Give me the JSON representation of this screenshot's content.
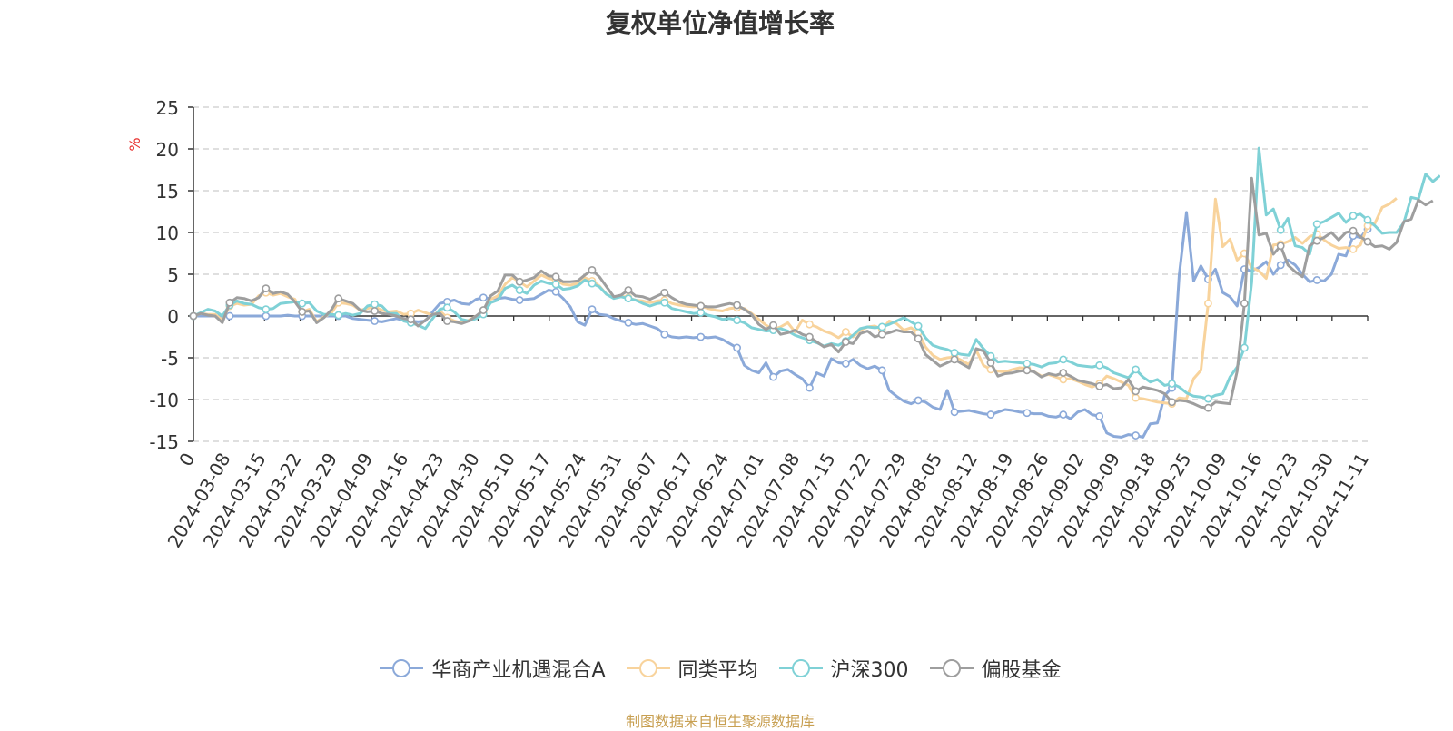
{
  "source": "制图数据来自恒生聚源数据库",
  "chart_data": {
    "type": "line",
    "title": "复权单位净值增长率",
    "ylabel": "%",
    "ylim": [
      -15,
      25
    ],
    "yticks": [
      25,
      20,
      15,
      10,
      5,
      0,
      -5,
      -10,
      -15
    ],
    "grid": true,
    "legend_position": "bottom",
    "x_tick_labels": [
      "0",
      "2024-03-08",
      "2024-03-15",
      "2024-03-22",
      "2024-03-29",
      "2024-04-09",
      "2024-04-16",
      "2024-04-23",
      "2024-04-30",
      "2024-05-10",
      "2024-05-17",
      "2024-05-24",
      "2024-05-31",
      "2024-06-07",
      "2024-06-17",
      "2024-06-24",
      "2024-07-01",
      "2024-07-08",
      "2024-07-15",
      "2024-07-22",
      "2024-07-29",
      "2024-08-05",
      "2024-08-12",
      "2024-08-19",
      "2024-08-26",
      "2024-09-02",
      "2024-09-09",
      "2024-09-18",
      "2024-09-25",
      "2024-10-09",
      "2024-10-16",
      "2024-10-23",
      "2024-10-30",
      "2024-11-11"
    ],
    "series": [
      {
        "name": "华商产业机遇混合A",
        "color": "#8ba9d9",
        "values": [
          0,
          0,
          0,
          0,
          0,
          0,
          0,
          0,
          0,
          0,
          0,
          0,
          0,
          0.1,
          0,
          0,
          0,
          0,
          0,
          0,
          0,
          0,
          -0.3,
          -0.4,
          -0.5,
          -0.6,
          -0.7,
          -0.5,
          -0.3,
          -0.5,
          -0.6,
          -0.7,
          -0.6,
          0.5,
          1.5,
          1.7,
          1.9,
          1.5,
          1.4,
          2,
          2.2,
          2.1,
          2.1,
          2.2,
          2,
          1.9,
          2,
          2.1,
          2.6,
          3.1,
          2.9,
          2.1,
          1.1,
          -0.7,
          -1.1,
          0.8,
          0.2,
          0.1,
          -0.3,
          -0.6,
          -0.8,
          -1,
          -0.9,
          -1.2,
          -1.5,
          -2.2,
          -2.5,
          -2.6,
          -2.5,
          -2.6,
          -2.5,
          -2.6,
          -2.5,
          -2.8,
          -3.3,
          -3.8,
          -5.9,
          -6.5,
          -6.8,
          -5.6,
          -7.3,
          -6.6,
          -6.4,
          -7,
          -7.5,
          -8.6,
          -6.8,
          -7.2,
          -5.1,
          -5.6,
          -5.7,
          -5.2,
          -5.9,
          -6.3,
          -6,
          -6.5,
          -8.9,
          -9.6,
          -10.2,
          -10.5,
          -10.1,
          -10.3,
          -10.9,
          -11.2,
          -8.9,
          -11.5,
          -11.4,
          -11.3,
          -11.5,
          -11.7,
          -11.8,
          -11.5,
          -11.2,
          -11.3,
          -11.5,
          -11.6,
          -11.7,
          -11.7,
          -12,
          -12.1,
          -11.8,
          -12.3,
          -11.5,
          -11.2,
          -11.8,
          -12,
          -14,
          -14.4,
          -14.5,
          -14.2,
          -14.3,
          -14.5,
          -12.9,
          -12.8,
          -9.5,
          -8.6,
          4.9,
          12.4,
          4.2,
          6,
          4.4,
          5.6,
          2.8,
          2.3,
          1.2,
          5.6,
          5.4,
          5.8,
          6.5,
          5,
          6.1,
          6.7,
          6.1,
          5,
          4.1,
          4.3,
          4.2,
          5,
          7.4,
          7.2,
          9.6,
          9.4,
          10.4
        ]
      },
      {
        "name": "同类平均",
        "color": "#f8d39c",
        "values": [
          0,
          0.3,
          0.2,
          0.2,
          -0.5,
          1.2,
          1.5,
          1.3,
          1.4,
          2.4,
          2.8,
          2.5,
          2.7,
          2.3,
          2,
          0.5,
          0.8,
          -0.7,
          -0.1,
          0.3,
          1.6,
          1.5,
          1.3,
          0.7,
          0.9,
          1.1,
          0.7,
          0.5,
          0.6,
          0.2,
          0.3,
          0.7,
          0.4,
          0.1,
          0.6,
          -0.2,
          -0.6,
          -0.8,
          -0.5,
          0,
          0.5,
          2,
          2.4,
          3.8,
          4.6,
          4.1,
          3.5,
          4.2,
          4.9,
          4.5,
          4.3,
          3.8,
          3.7,
          3.9,
          4.6,
          4.2,
          3.6,
          2.6,
          2.2,
          2.4,
          2.2,
          1.9,
          1.8,
          1.6,
          1.8,
          1.9,
          1.5,
          1.3,
          1.2,
          1.1,
          1.2,
          0.9,
          0.7,
          0.6,
          0.9,
          1,
          0.9,
          0.3,
          -0.4,
          -1.1,
          -1.6,
          -1.3,
          -0.8,
          -1.9,
          -0.5,
          -1,
          -1.3,
          -1.8,
          -2.1,
          -2.6,
          -1.9,
          -2.5,
          -1.7,
          -1.3,
          -1.2,
          -1.6,
          -0.6,
          -0.9,
          -1.7,
          -1.4,
          -2,
          -3.7,
          -4.7,
          -5.2,
          -5,
          -4.9,
          -5.3,
          -5.8,
          -4.1,
          -5.9,
          -6.4,
          -6.6,
          -6.7,
          -6.4,
          -6.2,
          -6.3,
          -6.7,
          -7.2,
          -7,
          -7.3,
          -7.6,
          -7.5,
          -7.8,
          -8.2,
          -8.5,
          -8.1,
          -7.2,
          -7.5,
          -7.9,
          -8.3,
          -9.8,
          -9.9,
          -10.1,
          -10.3,
          -10.4,
          -10.5,
          -9.8,
          -9.9,
          -7.5,
          -6.5,
          1.5,
          14,
          8.3,
          9.2,
          6.7,
          7.5,
          5.8,
          5.4,
          4.5,
          8.5,
          8.6,
          8.9,
          9.4,
          8.7,
          9.5,
          9.8,
          9.1,
          8.5,
          8.1,
          8.2,
          8,
          8.5,
          10.8,
          11.1,
          13,
          13.4,
          14.1
        ]
      },
      {
        "name": "沪深300",
        "color": "#7fd1d6",
        "values": [
          0,
          0.4,
          0.8,
          0.6,
          0,
          1.3,
          1.8,
          1.5,
          1.4,
          1,
          0.8,
          0.9,
          1.5,
          1.6,
          1.7,
          1.5,
          1.6,
          0.6,
          0.2,
          0.2,
          0.1,
          0.3,
          0.1,
          0.3,
          1.2,
          1.4,
          1.2,
          0.3,
          0.3,
          -0.6,
          -0.8,
          -1.1,
          -1.5,
          -0.3,
          0.8,
          1,
          0.5,
          -0.4,
          -0.6,
          -0.3,
          0.2,
          1.6,
          1.9,
          3.3,
          3.7,
          3.1,
          2.7,
          3.7,
          4.2,
          3.9,
          3.8,
          3.2,
          3.3,
          3.6,
          4.3,
          3.9,
          3.5,
          2.6,
          2.1,
          2.3,
          2.1,
          1.9,
          1.5,
          1.2,
          1.5,
          1.6,
          0.9,
          0.7,
          0.5,
          0.3,
          0.4,
          0.1,
          -0.1,
          -0.4,
          -0.3,
          -0.5,
          -0.8,
          -1.4,
          -1.6,
          -1.8,
          -1.7,
          -1.5,
          -1.8,
          -2.3,
          -2.6,
          -2.9,
          -3.2,
          -3.6,
          -3.3,
          -3.5,
          -3,
          -2.3,
          -1.5,
          -1.3,
          -1.4,
          -1.3,
          -1,
          -0.6,
          -0.2,
          -0.7,
          -1.2,
          -2.6,
          -3.5,
          -3.8,
          -4,
          -4.4,
          -4.6,
          -4.7,
          -2.8,
          -3.9,
          -4.8,
          -5.5,
          -5.4,
          -5.5,
          -5.6,
          -5.7,
          -5.8,
          -6.1,
          -5.7,
          -5.6,
          -5.2,
          -5.5,
          -5.9,
          -6,
          -6.1,
          -5.9,
          -6.2,
          -6.8,
          -7.1,
          -7.4,
          -6.4,
          -7.3,
          -7.9,
          -7.6,
          -8.3,
          -8.1,
          -8.5,
          -9.2,
          -9.6,
          -9.7,
          -9.9,
          -9.5,
          -9.3,
          -7.3,
          -6.1,
          -3.8,
          4,
          20.1,
          12.1,
          12.8,
          10.3,
          11.7,
          8.4,
          8.2,
          7.4,
          11,
          11.3,
          11.8,
          12.3,
          11.2,
          12,
          12.2,
          11.5,
          10.8,
          9.9,
          10,
          10,
          11.2,
          14.2,
          14,
          17,
          16.1,
          16.8
        ]
      },
      {
        "name": "偏股基金",
        "color": "#9e9e9e",
        "values": [
          0,
          0.3,
          0.1,
          0,
          -0.8,
          1.6,
          2.2,
          2.1,
          1.8,
          2.2,
          3.3,
          2.7,
          2.9,
          2.6,
          1.7,
          0.5,
          0.6,
          -0.8,
          -0.2,
          0.7,
          2.1,
          1.8,
          1.5,
          0.7,
          0.5,
          0.6,
          0.3,
          0.2,
          0,
          -0.3,
          -0.4,
          -1.2,
          -0.5,
          0.2,
          0.3,
          -0.6,
          -0.7,
          -0.9,
          -0.6,
          0,
          0.7,
          2.4,
          3,
          4.9,
          4.9,
          4.1,
          4.3,
          4.6,
          5.4,
          4.8,
          4.7,
          4.1,
          4.1,
          4.2,
          4.9,
          5.5,
          4.7,
          3.5,
          2.3,
          2.5,
          3.1,
          2.4,
          2.3,
          2,
          2.4,
          2.8,
          2.2,
          1.7,
          1.4,
          1.3,
          1.2,
          1.1,
          1.1,
          1.3,
          1.5,
          1.3,
          0.8,
          0.2,
          -1,
          -1.6,
          -1.1,
          -2.2,
          -2,
          -1.7,
          -2.2,
          -2.5,
          -3.1,
          -3.7,
          -3.4,
          -4.3,
          -3.1,
          -3.3,
          -2.1,
          -1.8,
          -2.5,
          -2.2,
          -2,
          -1.7,
          -1.9,
          -1.9,
          -2.7,
          -4.6,
          -5.3,
          -6,
          -5.6,
          -5.2,
          -5.7,
          -6.2,
          -3.9,
          -4.2,
          -5.6,
          -7.2,
          -6.9,
          -6.8,
          -6.6,
          -6.5,
          -6.7,
          -7.3,
          -6.9,
          -7.1,
          -6.8,
          -7.2,
          -7.7,
          -7.9,
          -8.1,
          -8.4,
          -8.2,
          -8.7,
          -8.6,
          -7.6,
          -9,
          -8.5,
          -8.7,
          -8.9,
          -9.3,
          -10.3,
          -10.1,
          -10.2,
          -10.5,
          -10.9,
          -11,
          -10.3,
          -10.4,
          -10.5,
          -6.6,
          1.5,
          16.5,
          9.7,
          9.9,
          7.4,
          8.4,
          6.1,
          5.3,
          4.7,
          8.4,
          9,
          9.4,
          10,
          9.1,
          10,
          10.2,
          9.5,
          8.9,
          8.3,
          8.4,
          8,
          8.8,
          11.3,
          11.6,
          13.9,
          13.3,
          13.8
        ]
      }
    ]
  }
}
